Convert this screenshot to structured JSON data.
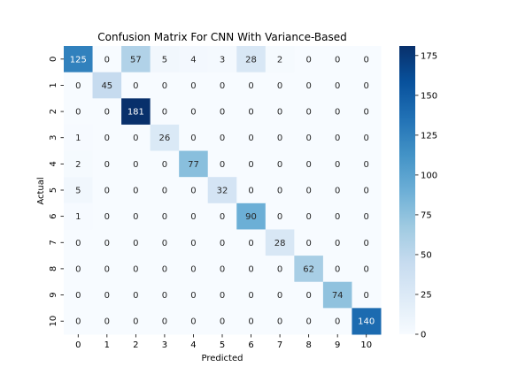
{
  "chart_data": {
    "type": "heatmap",
    "title": "Confusion Matrix For CNN With Variance-Based",
    "xlabel": "Predicted",
    "ylabel": "Actual",
    "x_categories": [
      "0",
      "1",
      "2",
      "3",
      "4",
      "5",
      "6",
      "7",
      "8",
      "9",
      "10"
    ],
    "y_categories": [
      "0",
      "1",
      "2",
      "3",
      "4",
      "5",
      "6",
      "7",
      "8",
      "9",
      "10"
    ],
    "values": [
      [
        125,
        0,
        57,
        5,
        4,
        3,
        28,
        2,
        0,
        0,
        0
      ],
      [
        0,
        45,
        0,
        0,
        0,
        0,
        0,
        0,
        0,
        0,
        0
      ],
      [
        0,
        0,
        181,
        0,
        0,
        0,
        0,
        0,
        0,
        0,
        0
      ],
      [
        1,
        0,
        0,
        26,
        0,
        0,
        0,
        0,
        0,
        0,
        0
      ],
      [
        2,
        0,
        0,
        0,
        77,
        0,
        0,
        0,
        0,
        0,
        0
      ],
      [
        5,
        0,
        0,
        0,
        0,
        32,
        0,
        0,
        0,
        0,
        0
      ],
      [
        1,
        0,
        0,
        0,
        0,
        0,
        90,
        0,
        0,
        0,
        0
      ],
      [
        0,
        0,
        0,
        0,
        0,
        0,
        0,
        28,
        0,
        0,
        0
      ],
      [
        0,
        0,
        0,
        0,
        0,
        0,
        0,
        0,
        62,
        0,
        0
      ],
      [
        0,
        0,
        0,
        0,
        0,
        0,
        0,
        0,
        0,
        74,
        0
      ],
      [
        0,
        0,
        0,
        0,
        0,
        0,
        0,
        0,
        0,
        0,
        140
      ]
    ],
    "colormap": "Blues",
    "colors": {
      "low": "#f7fbff",
      "high": "#08306b",
      "text_dark": "#262626",
      "text_light": "#ffffff"
    },
    "colorbar": {
      "min": 0,
      "max": 181,
      "ticks": [
        0,
        25,
        50,
        75,
        100,
        125,
        150,
        175
      ]
    }
  }
}
